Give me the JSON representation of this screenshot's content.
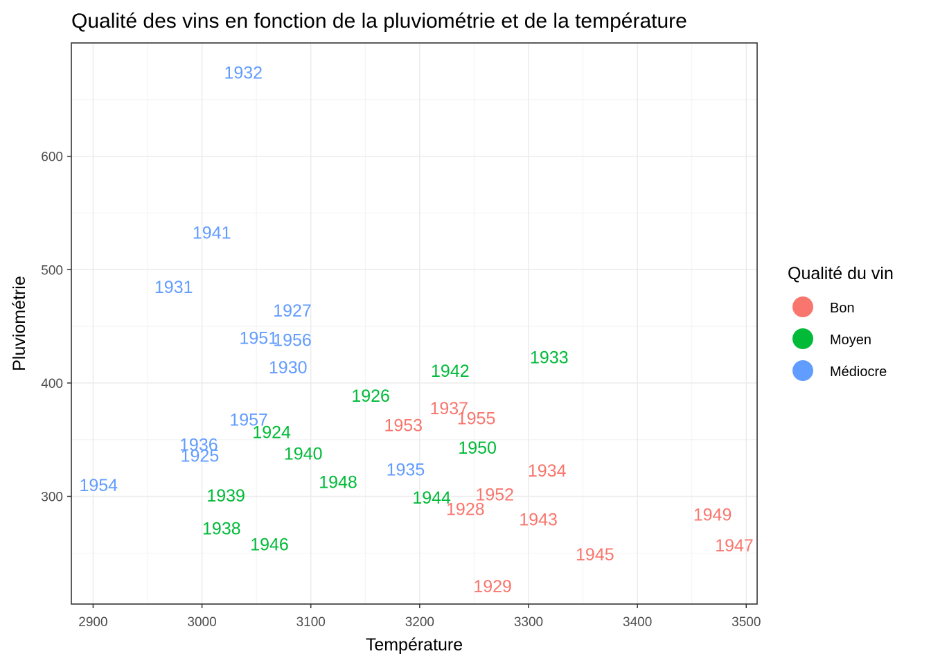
{
  "chart_data": {
    "type": "scatter",
    "title": "Qualité des vins en fonction de la pluviométrie et de la température",
    "xlabel": "Température",
    "ylabel": "Pluviométrie",
    "xlim": [
      2880,
      3510
    ],
    "ylim": [
      205,
      700
    ],
    "x_ticks": [
      2900,
      3000,
      3100,
      3200,
      3300,
      3400,
      3500
    ],
    "y_ticks": [
      300,
      400,
      500,
      600
    ],
    "grid": true,
    "legend": {
      "title": "Qualité du vin",
      "position": "right",
      "entries": [
        {
          "label": "Bon",
          "color": "#F8766D"
        },
        {
          "label": "Moyen",
          "color": "#00BA38"
        },
        {
          "label": "Médiocre",
          "color": "#619CFF"
        }
      ]
    },
    "series": [
      {
        "name": "Bon",
        "color": "#F8766D",
        "points": [
          {
            "label": "1937",
            "x": 3227,
            "y": 378
          },
          {
            "label": "1955",
            "x": 3252,
            "y": 369
          },
          {
            "label": "1953",
            "x": 3185,
            "y": 363
          },
          {
            "label": "1934",
            "x": 3317,
            "y": 323
          },
          {
            "label": "1952",
            "x": 3269,
            "y": 302
          },
          {
            "label": "1928",
            "x": 3242,
            "y": 289
          },
          {
            "label": "1943",
            "x": 3309,
            "y": 280
          },
          {
            "label": "1949",
            "x": 3469,
            "y": 284
          },
          {
            "label": "1947",
            "x": 3489,
            "y": 257
          },
          {
            "label": "1945",
            "x": 3361,
            "y": 249
          },
          {
            "label": "1929",
            "x": 3267,
            "y": 221
          }
        ]
      },
      {
        "name": "Moyen",
        "color": "#00BA38",
        "points": [
          {
            "label": "1933",
            "x": 3319,
            "y": 423
          },
          {
            "label": "1942",
            "x": 3228,
            "y": 411
          },
          {
            "label": "1926",
            "x": 3155,
            "y": 389
          },
          {
            "label": "1924",
            "x": 3064,
            "y": 357
          },
          {
            "label": "1950",
            "x": 3253,
            "y": 343
          },
          {
            "label": "1940",
            "x": 3093,
            "y": 338
          },
          {
            "label": "1948",
            "x": 3125,
            "y": 313
          },
          {
            "label": "1944",
            "x": 3211,
            "y": 299
          },
          {
            "label": "1939",
            "x": 3022,
            "y": 301
          },
          {
            "label": "1938",
            "x": 3018,
            "y": 272
          },
          {
            "label": "1946",
            "x": 3062,
            "y": 258
          }
        ]
      },
      {
        "name": "Médiocre",
        "color": "#619CFF",
        "points": [
          {
            "label": "1932",
            "x": 3038,
            "y": 674
          },
          {
            "label": "1941",
            "x": 3009,
            "y": 533
          },
          {
            "label": "1931",
            "x": 2974,
            "y": 485
          },
          {
            "label": "1927",
            "x": 3083,
            "y": 464
          },
          {
            "label": "1951",
            "x": 3052,
            "y": 440
          },
          {
            "label": "1956",
            "x": 3083,
            "y": 438
          },
          {
            "label": "1930",
            "x": 3079,
            "y": 414
          },
          {
            "label": "1957",
            "x": 3043,
            "y": 368
          },
          {
            "label": "1936",
            "x": 2997,
            "y": 346
          },
          {
            "label": "1925",
            "x": 2998,
            "y": 336
          },
          {
            "label": "1935",
            "x": 3187,
            "y": 324
          },
          {
            "label": "1954",
            "x": 2905,
            "y": 310
          }
        ]
      }
    ]
  }
}
